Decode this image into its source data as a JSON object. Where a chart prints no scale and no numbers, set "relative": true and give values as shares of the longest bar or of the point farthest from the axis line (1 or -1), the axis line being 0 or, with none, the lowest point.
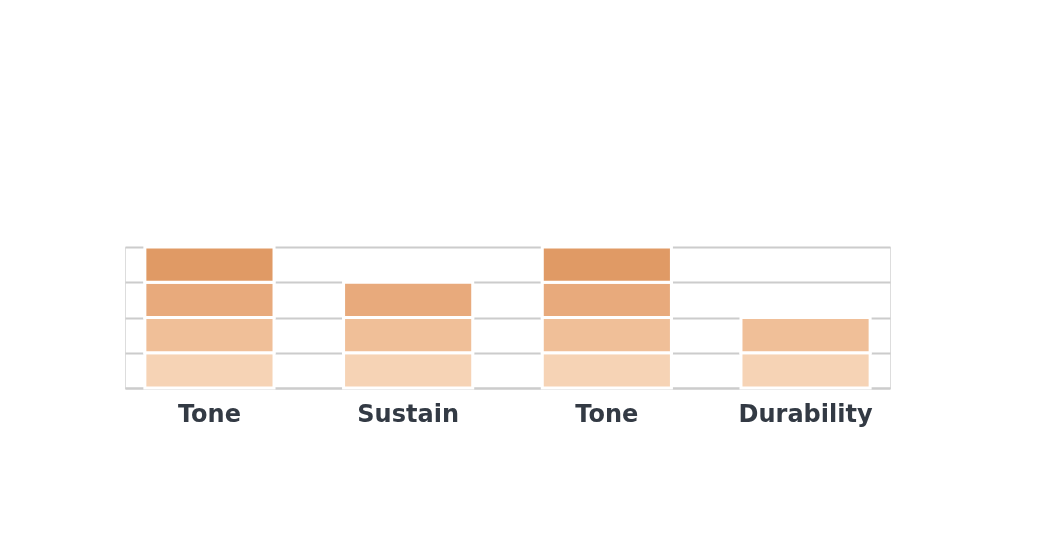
{
  "chart_data": {
    "type": "bar",
    "stacked": true,
    "relative": true,
    "categories": [
      "Tone",
      "Sustain",
      "Tone",
      "Durability"
    ],
    "series": [
      {
        "color": "#f6d3b5",
        "values": [
          0.25,
          0.25,
          0.25,
          0.25
        ]
      },
      {
        "color": "#f0bf98",
        "values": [
          0.25,
          0.25,
          0.25,
          0.25
        ]
      },
      {
        "color": "#e8aa7c",
        "values": [
          0.25,
          0.25,
          0.25,
          0
        ]
      },
      {
        "color": "#e09a65",
        "values": [
          0.25,
          0,
          0.25,
          0
        ]
      }
    ],
    "tick_labels": "x",
    "grid": "y",
    "legend": false
  }
}
